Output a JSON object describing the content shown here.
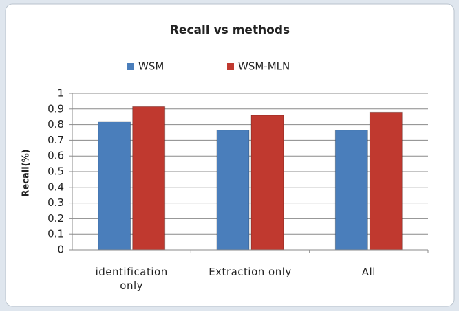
{
  "chart_data": {
    "type": "bar",
    "title": "Recall vs methods",
    "ylabel": "Recall(%)",
    "categories": [
      "identification only",
      "Extraction only",
      "All"
    ],
    "series": [
      {
        "name": "WSM",
        "color": "#4a7ebb",
        "values": [
          0.82,
          0.765,
          0.765
        ]
      },
      {
        "name": "WSM-MLN",
        "color": "#c0392f",
        "values": [
          0.915,
          0.86,
          0.88
        ]
      }
    ],
    "ylim": [
      0,
      1
    ],
    "yticks": [
      0,
      0.1,
      0.2,
      0.3,
      0.4,
      0.5,
      0.6,
      0.7,
      0.8,
      0.9,
      1
    ],
    "grid": true,
    "legend": "top"
  }
}
